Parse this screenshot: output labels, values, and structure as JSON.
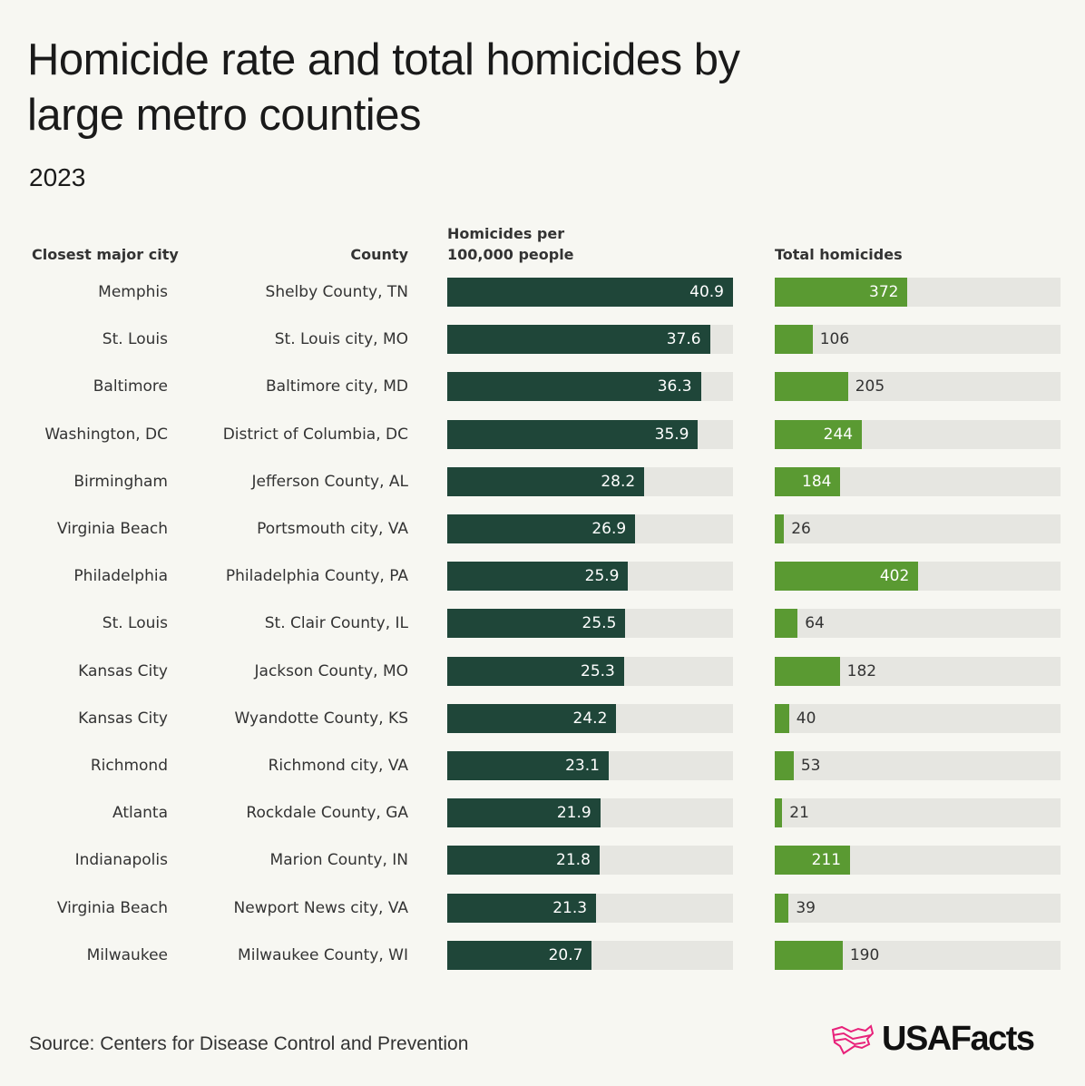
{
  "chart_data": {
    "type": "bar",
    "title": "Homicide rate and total homicides by large metro counties",
    "subtitle": "2023",
    "columns": {
      "city": "Closest major city",
      "county": "County",
      "rate": "Homicides per 100,000 people",
      "total": "Total homicides"
    },
    "rate_max": 40.9,
    "total_max": 800,
    "colors": {
      "rate": "#1f4639",
      "total": "#5a9a32",
      "track": "#e6e6e1"
    },
    "rows": [
      {
        "city": "Memphis",
        "county": "Shelby County, TN",
        "rate": 40.9,
        "total": 372,
        "total_label_inside": true
      },
      {
        "city": "St. Louis",
        "county": "St. Louis city, MO",
        "rate": 37.6,
        "total": 106,
        "total_label_inside": false
      },
      {
        "city": "Baltimore",
        "county": "Baltimore city, MD",
        "rate": 36.3,
        "total": 205,
        "total_label_inside": false
      },
      {
        "city": "Washington, DC",
        "county": "District of Columbia, DC",
        "rate": 35.9,
        "total": 244,
        "total_label_inside": true
      },
      {
        "city": "Birmingham",
        "county": "Jefferson County, AL",
        "rate": 28.2,
        "total": 184,
        "total_label_inside": true
      },
      {
        "city": "Virginia Beach",
        "county": "Portsmouth city,  VA",
        "rate": 26.9,
        "total": 26,
        "total_label_inside": false
      },
      {
        "city": "Philadelphia",
        "county": "Philadelphia County, PA",
        "rate": 25.9,
        "total": 402,
        "total_label_inside": true
      },
      {
        "city": "St. Louis",
        "county": "St. Clair County, IL",
        "rate": 25.5,
        "total": 64,
        "total_label_inside": false
      },
      {
        "city": "Kansas City",
        "county": "Jackson County, MO",
        "rate": 25.3,
        "total": 182,
        "total_label_inside": false
      },
      {
        "city": "Kansas City",
        "county": "Wyandotte County, KS",
        "rate": 24.2,
        "total": 40,
        "total_label_inside": false
      },
      {
        "city": "Richmond",
        "county": "Richmond city, VA",
        "rate": 23.1,
        "total": 53,
        "total_label_inside": false
      },
      {
        "city": "Atlanta",
        "county": "Rockdale County, GA",
        "rate": 21.9,
        "total": 21,
        "total_label_inside": false
      },
      {
        "city": "Indianapolis",
        "county": "Marion County, IN",
        "rate": 21.8,
        "total": 211,
        "total_label_inside": true
      },
      {
        "city": "Virginia Beach",
        "county": "Newport News city, VA",
        "rate": 21.3,
        "total": 39,
        "total_label_inside": false
      },
      {
        "city": "Milwaukee",
        "county": "Milwaukee County, WI",
        "rate": 20.7,
        "total": 190,
        "total_label_inside": false
      }
    ]
  },
  "source": "Source: Centers for Disease Control and Prevention",
  "logo": {
    "text": "USAFacts",
    "color": "#e8217a"
  }
}
